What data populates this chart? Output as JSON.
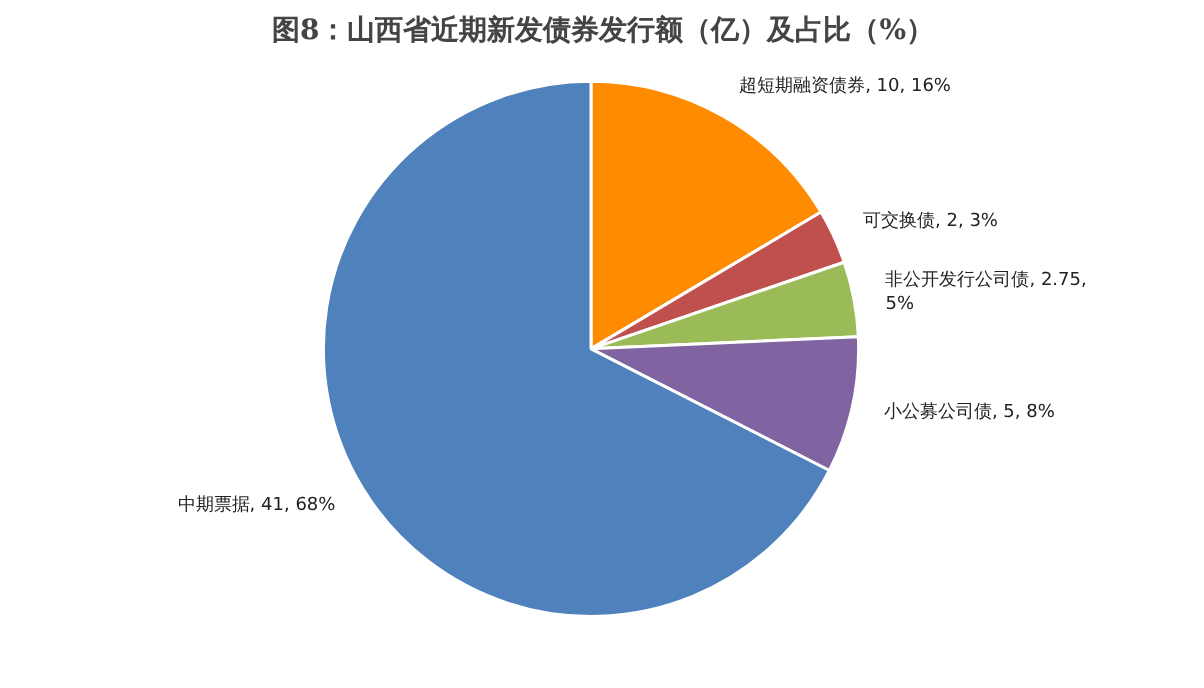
{
  "chart_data": {
    "type": "pie",
    "title": "图8：山西省近期新发债券发行额（亿）及占比（%）",
    "categories": [
      "超短期融资债券",
      "可交换债",
      "非公开发行公司债",
      "小公募公司债",
      "中期票据"
    ],
    "values": [
      10,
      2,
      2.75,
      5,
      41
    ],
    "colors": [
      "#ff8c00",
      "#c0504d",
      "#9bbb59",
      "#8064a2",
      "#4f81bd"
    ],
    "value_labels": [
      "10, 16%",
      "2, 3%",
      "2.75,\n5%",
      "5, 8%",
      "41, 68%"
    ]
  }
}
